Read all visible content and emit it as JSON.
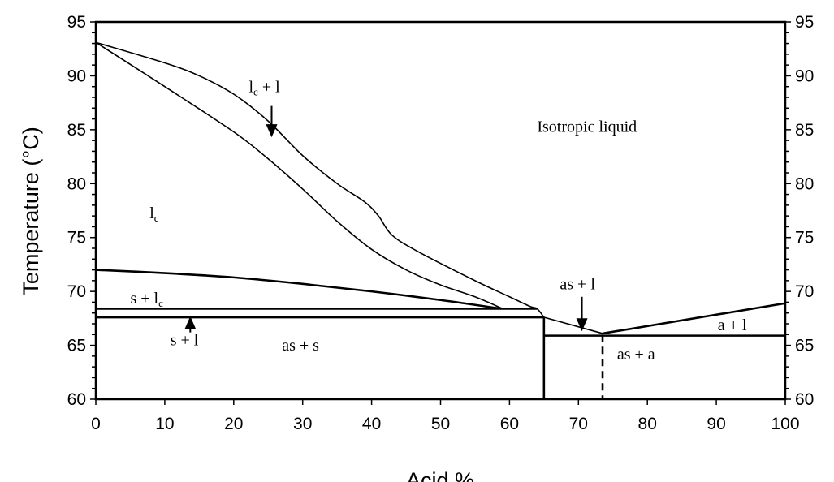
{
  "chart_data": {
    "type": "line",
    "xlabel": "Acid %",
    "ylabel": "Temperature (°C)",
    "xlim": [
      0,
      100
    ],
    "ylim": [
      60,
      95
    ],
    "xticks": [
      "0",
      "10",
      "20",
      "30",
      "40",
      "50",
      "60",
      "70",
      "80",
      "90",
      "100"
    ],
    "yticks": [
      "60",
      "65",
      "70",
      "75",
      "80",
      "85",
      "90",
      "95"
    ],
    "right_axis_ticks": [
      "60",
      "65",
      "70",
      "75",
      "80",
      "85",
      "90",
      "95"
    ],
    "grid": false,
    "line_color": "#000000",
    "boundaries": [
      {
        "id": "upper-liquidus",
        "style": "thin",
        "points": [
          [
            0,
            93.1
          ],
          [
            10,
            91.2
          ],
          [
            15,
            90
          ],
          [
            20,
            88.3
          ],
          [
            25,
            85.8
          ],
          [
            30,
            82.6
          ],
          [
            35,
            80
          ],
          [
            39,
            78.3
          ],
          [
            41,
            77
          ],
          [
            43,
            75.2
          ],
          [
            47,
            73.6
          ],
          [
            55,
            71
          ],
          [
            60,
            69.5
          ],
          [
            63,
            68.6
          ],
          [
            64,
            68.4
          ],
          [
            65,
            67.6
          ]
        ]
      },
      {
        "id": "lower-liquidus",
        "style": "thin",
        "points": [
          [
            0,
            93.1
          ],
          [
            10,
            89
          ],
          [
            20,
            84.8
          ],
          [
            25,
            82.3
          ],
          [
            30,
            79.5
          ],
          [
            35,
            76.5
          ],
          [
            40,
            73.9
          ],
          [
            45,
            72
          ],
          [
            50,
            70.6
          ],
          [
            55,
            69.5
          ],
          [
            59,
            68.4
          ]
        ]
      },
      {
        "id": "s-lc-boundary",
        "style": "thick",
        "points": [
          [
            0,
            72
          ],
          [
            10,
            71.7
          ],
          [
            20,
            71.3
          ],
          [
            30,
            70.7
          ],
          [
            40,
            70
          ],
          [
            50,
            69.2
          ],
          [
            58.8,
            68.4
          ]
        ]
      },
      {
        "id": "line-68.4",
        "style": "thick",
        "points": [
          [
            0,
            68.4
          ],
          [
            64,
            68.4
          ]
        ]
      },
      {
        "id": "line-67.6",
        "style": "thick",
        "points": [
          [
            0,
            67.6
          ],
          [
            65,
            67.6
          ]
        ]
      },
      {
        "id": "vertical-65",
        "style": "thick",
        "points": [
          [
            65,
            67.6
          ],
          [
            65,
            60
          ]
        ]
      },
      {
        "id": "as-liquidus",
        "style": "thin",
        "points": [
          [
            65,
            67.6
          ],
          [
            73.5,
            66.1
          ]
        ]
      },
      {
        "id": "eutectic-line",
        "style": "thick",
        "points": [
          [
            65,
            65.9
          ],
          [
            100,
            65.9
          ]
        ]
      },
      {
        "id": "a-liquidus",
        "style": "thick",
        "points": [
          [
            73.5,
            66.1
          ],
          [
            100,
            68.9
          ]
        ]
      },
      {
        "id": "dashed-73.5",
        "style": "dashed",
        "points": [
          [
            73.5,
            66
          ],
          [
            73.5,
            60
          ]
        ]
      }
    ],
    "annotations": [
      {
        "id": "lc-plus-l",
        "base": "l",
        "sub": "c",
        "rest": " + l",
        "at": [
          22.2,
          88.5
        ],
        "arrow": [
          [
            25.5,
            87.2
          ],
          [
            25.5,
            84.3
          ]
        ]
      },
      {
        "id": "isotropic-liquid",
        "base": "Isotropic liquid",
        "sub": "",
        "rest": "",
        "at": [
          64,
          84.8
        ]
      },
      {
        "id": "lc",
        "base": "l",
        "sub": "c",
        "rest": "",
        "at": [
          7.8,
          76.8
        ]
      },
      {
        "id": "s-plus-lc",
        "base": "s + l",
        "sub": "c",
        "rest": "",
        "at": [
          5,
          68.9
        ]
      },
      {
        "id": "s-plus-l",
        "base": "s + l",
        "sub": "",
        "rest": "",
        "at": [
          10.8,
          65
        ],
        "arrow": [
          [
            13.7,
            66.2
          ],
          [
            13.7,
            67.7
          ]
        ]
      },
      {
        "id": "as-plus-s",
        "base": "as + s",
        "sub": "",
        "rest": "",
        "at": [
          27,
          64.5
        ]
      },
      {
        "id": "as-plus-l",
        "base": "as + l",
        "sub": "",
        "rest": "",
        "at": [
          67.3,
          70.2
        ],
        "arrow": [
          [
            70.5,
            69.5
          ],
          [
            70.5,
            66.3
          ]
        ]
      },
      {
        "id": "a-plus-l",
        "base": "a + l",
        "sub": "",
        "rest": "",
        "at": [
          90.2,
          66.4
        ]
      },
      {
        "id": "as-plus-a",
        "base": "as + a",
        "sub": "",
        "rest": "",
        "at": [
          75.6,
          63.7
        ]
      }
    ]
  }
}
